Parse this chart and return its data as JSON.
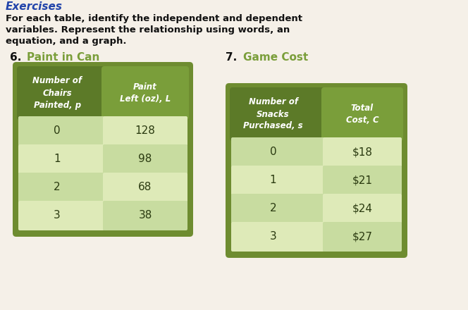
{
  "bg_color": "#d4cfc8",
  "page_color": "#f5f0e8",
  "header_text": "Exercises",
  "instruction_line1": "For each table, identify the independent and dependent",
  "instruction_line2": "variables. Represent the relationship using words, an",
  "instruction_line3": "equation, and a graph.",
  "label6": "6.",
  "title6": "Paint in Can",
  "label7": "7.",
  "title7": "Game Cost",
  "table1_header_col1": "Number of\nChairs\nPainted, p",
  "table1_header_col2": "Paint\nLeft (oz), L",
  "table1_data_col1": [
    "0",
    "1",
    "2",
    "3"
  ],
  "table1_data_col2": [
    "128",
    "98",
    "68",
    "38"
  ],
  "table2_header_col1": "Number of\nSnacks\nPurchased, s",
  "table2_header_col2": "Total\nCost, C",
  "table2_data_col1": [
    "0",
    "1",
    "2",
    "3"
  ],
  "table2_data_col2": [
    "$18",
    "$21",
    "$24",
    "$27"
  ],
  "dark_green_hdr": "#5c7a28",
  "medium_green_hdr": "#7a9e3a",
  "light_row_a": "#c8dca0",
  "light_row_b": "#deeab8",
  "table_outer": "#6e8c30",
  "text_white": "#ffffff",
  "text_dark": "#2a3a10",
  "text_black": "#111111"
}
